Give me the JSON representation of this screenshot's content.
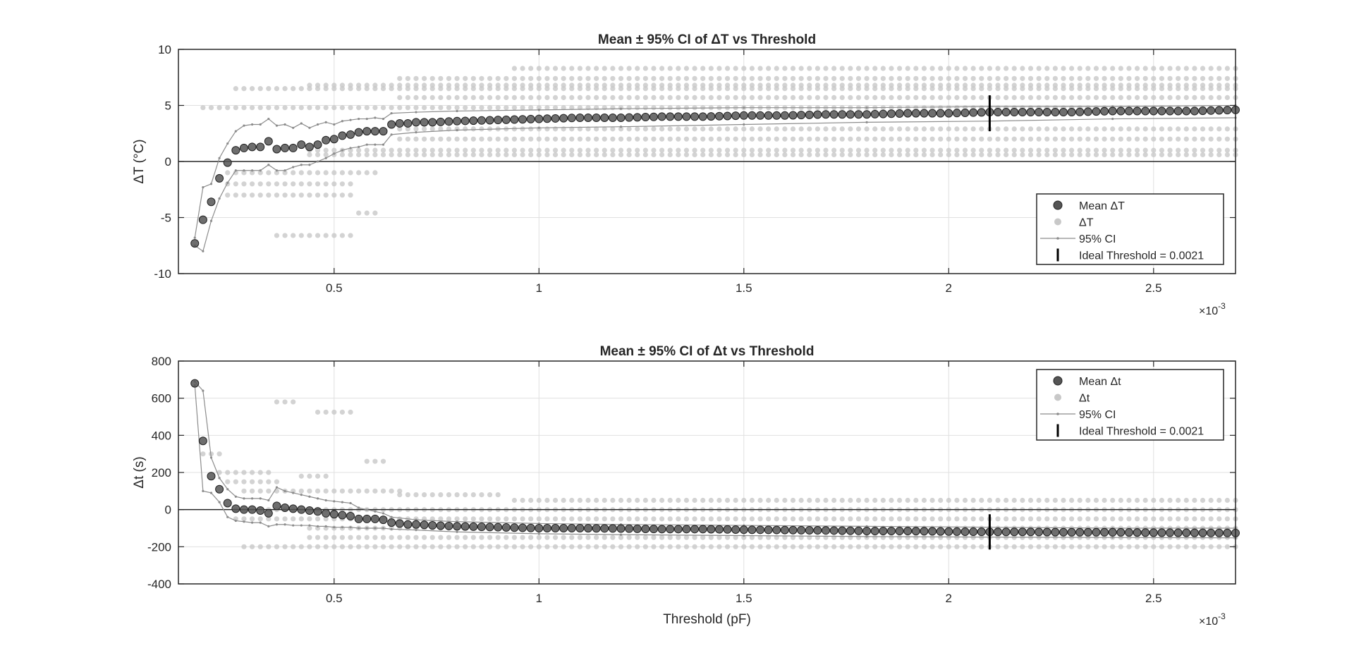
{
  "figure": {
    "background": "#ffffff",
    "colors": {
      "mean_fill": "#555555",
      "mean_edge": "#222222",
      "raw": "#c8c8c8",
      "ci": "#8c8c8c",
      "ideal": "#000000",
      "grid": "#e0e0e0",
      "axis": "#262626"
    }
  },
  "chart_data": [
    {
      "id": "top",
      "type": "scatter",
      "title": "Mean ± 95% CI of ΔT vs Threshold",
      "xlabel": "",
      "ylabel": "ΔT (°C)",
      "x_exponent_label": "×10",
      "x_exponent": "-3",
      "xlim": [
        0.00012,
        0.0027
      ],
      "ylim": [
        -10,
        10
      ],
      "xticks": [
        0.0005,
        0.001,
        0.0015,
        0.002,
        0.0025
      ],
      "xtick_labels": [
        "0.5",
        "1",
        "1.5",
        "2",
        "2.5"
      ],
      "yticks": [
        -10,
        -5,
        0,
        5,
        10
      ],
      "ytick_labels": [
        "-10",
        "-5",
        "0",
        "5",
        "10"
      ],
      "grid": true,
      "zero_line": true,
      "ideal_threshold": 0.0021,
      "ideal_bar_range": [
        2.7,
        5.9
      ],
      "mean_points": [
        [
          0.00016,
          -7.3
        ],
        [
          0.00018,
          -5.2
        ],
        [
          0.0002,
          -3.6
        ],
        [
          0.00022,
          -1.5
        ],
        [
          0.00024,
          -0.1
        ],
        [
          0.00026,
          1.0
        ],
        [
          0.00028,
          1.2
        ],
        [
          0.0003,
          1.3
        ],
        [
          0.00032,
          1.3
        ],
        [
          0.00034,
          1.8
        ],
        [
          0.00036,
          1.1
        ],
        [
          0.00038,
          1.2
        ],
        [
          0.0004,
          1.2
        ],
        [
          0.00042,
          1.5
        ],
        [
          0.00044,
          1.3
        ],
        [
          0.00046,
          1.5
        ],
        [
          0.00048,
          1.9
        ],
        [
          0.0005,
          2.0
        ],
        [
          0.00052,
          2.3
        ],
        [
          0.00054,
          2.4
        ],
        [
          0.00056,
          2.6
        ],
        [
          0.00058,
          2.7
        ],
        [
          0.0006,
          2.7
        ],
        [
          0.00062,
          2.7
        ],
        [
          0.00064,
          3.3
        ],
        [
          0.00066,
          3.4
        ],
        [
          0.00068,
          3.4
        ],
        [
          0.0007,
          3.5
        ],
        [
          0.00072,
          3.5
        ],
        [
          0.00074,
          3.5
        ],
        [
          0.0008,
          3.6
        ],
        [
          0.0009,
          3.7
        ],
        [
          0.001,
          3.8
        ],
        [
          0.0011,
          3.9
        ],
        [
          0.0012,
          3.9
        ],
        [
          0.0013,
          4.0
        ],
        [
          0.0014,
          4.0
        ],
        [
          0.0015,
          4.1
        ],
        [
          0.0016,
          4.1
        ],
        [
          0.0017,
          4.2
        ],
        [
          0.0018,
          4.2
        ],
        [
          0.0019,
          4.3
        ],
        [
          0.002,
          4.3
        ],
        [
          0.0021,
          4.4
        ],
        [
          0.0022,
          4.4
        ],
        [
          0.0023,
          4.4
        ],
        [
          0.0024,
          4.5
        ],
        [
          0.0025,
          4.5
        ],
        [
          0.0026,
          4.5
        ],
        [
          0.0027,
          4.6
        ]
      ],
      "ci_upper": [
        [
          0.00016,
          -6.8
        ],
        [
          0.00018,
          -2.3
        ],
        [
          0.0002,
          -2.0
        ],
        [
          0.00022,
          0.3
        ],
        [
          0.00024,
          1.6
        ],
        [
          0.00026,
          2.7
        ],
        [
          0.00028,
          3.2
        ],
        [
          0.0003,
          3.3
        ],
        [
          0.00032,
          3.3
        ],
        [
          0.00034,
          3.8
        ],
        [
          0.00036,
          3.2
        ],
        [
          0.00038,
          3.3
        ],
        [
          0.0004,
          3.0
        ],
        [
          0.00042,
          3.4
        ],
        [
          0.00044,
          3.0
        ],
        [
          0.00046,
          3.3
        ],
        [
          0.00048,
          3.5
        ],
        [
          0.0005,
          3.3
        ],
        [
          0.00052,
          3.6
        ],
        [
          0.00054,
          3.7
        ],
        [
          0.00056,
          3.8
        ],
        [
          0.00058,
          3.8
        ],
        [
          0.0006,
          3.9
        ],
        [
          0.00062,
          3.8
        ],
        [
          0.00064,
          4.3
        ],
        [
          0.0007,
          4.4
        ],
        [
          0.0008,
          4.5
        ],
        [
          0.001,
          4.6
        ],
        [
          0.0012,
          4.7
        ],
        [
          0.0015,
          4.8
        ],
        [
          0.0018,
          4.8
        ],
        [
          0.0021,
          4.9
        ],
        [
          0.0024,
          4.9
        ],
        [
          0.0027,
          5.0
        ]
      ],
      "ci_lower": [
        [
          0.00016,
          -7.5
        ],
        [
          0.00018,
          -8.0
        ],
        [
          0.0002,
          -5.3
        ],
        [
          0.00022,
          -3.3
        ],
        [
          0.00024,
          -1.9
        ],
        [
          0.00026,
          -0.8
        ],
        [
          0.00028,
          -0.8
        ],
        [
          0.0003,
          -0.8
        ],
        [
          0.00032,
          -0.8
        ],
        [
          0.00034,
          -0.3
        ],
        [
          0.00036,
          -0.8
        ],
        [
          0.00038,
          -0.8
        ],
        [
          0.0004,
          -0.5
        ],
        [
          0.00042,
          -0.3
        ],
        [
          0.00044,
          -0.3
        ],
        [
          0.00046,
          0.0
        ],
        [
          0.00048,
          0.3
        ],
        [
          0.0005,
          0.7
        ],
        [
          0.00052,
          1.0
        ],
        [
          0.00054,
          1.2
        ],
        [
          0.00056,
          1.3
        ],
        [
          0.00058,
          1.5
        ],
        [
          0.0006,
          1.5
        ],
        [
          0.00062,
          1.5
        ],
        [
          0.00064,
          2.4
        ],
        [
          0.0007,
          2.6
        ],
        [
          0.0008,
          2.8
        ],
        [
          0.001,
          3.0
        ],
        [
          0.0012,
          3.1
        ],
        [
          0.0015,
          3.3
        ],
        [
          0.0018,
          3.5
        ],
        [
          0.0021,
          3.6
        ],
        [
          0.0024,
          3.8
        ],
        [
          0.0027,
          3.9
        ]
      ],
      "raw_levels": [
        {
          "x_from": 0.00018,
          "x_to": 0.0027,
          "y": 4.8
        },
        {
          "x_from": 0.00026,
          "x_to": 0.0027,
          "y": 6.5
        },
        {
          "x_from": 0.00044,
          "x_to": 0.0027,
          "y": 6.8
        },
        {
          "x_from": 0.00066,
          "x_to": 0.0027,
          "y": 7.4
        },
        {
          "x_from": 0.00094,
          "x_to": 0.0027,
          "y": 8.3
        },
        {
          "x_from": 0.00066,
          "x_to": 0.0027,
          "y": 5.7
        },
        {
          "x_from": 0.00066,
          "x_to": 0.0027,
          "y": 2.9
        },
        {
          "x_from": 0.00066,
          "x_to": 0.0027,
          "y": 2.0
        },
        {
          "x_from": 0.00044,
          "x_to": 0.0027,
          "y": 1.0
        },
        {
          "x_from": 0.00044,
          "x_to": 0.0027,
          "y": 0.6
        },
        {
          "x_from": 0.00024,
          "x_to": 0.0006,
          "y": -1.0
        },
        {
          "x_from": 0.00024,
          "x_to": 0.00054,
          "y": -2.0
        },
        {
          "x_from": 0.00024,
          "x_to": 0.00054,
          "y": -3.0
        },
        {
          "x_from": 0.00036,
          "x_to": 0.00054,
          "y": -6.6
        },
        {
          "x_from": 0.00056,
          "x_to": 0.0006,
          "y": -4.6
        }
      ],
      "legend": {
        "position": "bottom-right",
        "entries": [
          "Mean ΔT",
          "ΔT",
          "95% CI",
          "Ideal Threshold = 0.0021"
        ]
      }
    },
    {
      "id": "bottom",
      "type": "scatter",
      "title": "Mean ± 95% CI of Δt vs Threshold",
      "xlabel": "Threshold (pF)",
      "ylabel": "Δt (s)",
      "x_exponent_label": "×10",
      "x_exponent": "-3",
      "xlim": [
        0.00012,
        0.0027
      ],
      "ylim": [
        -400,
        800
      ],
      "xticks": [
        0.0005,
        0.001,
        0.0015,
        0.002,
        0.0025
      ],
      "xtick_labels": [
        "0.5",
        "1",
        "1.5",
        "2",
        "2.5"
      ],
      "yticks": [
        -400,
        -200,
        0,
        200,
        400,
        600,
        800
      ],
      "ytick_labels": [
        "-400",
        "-200",
        "0",
        "200",
        "400",
        "600",
        "800"
      ],
      "grid": true,
      "zero_line": true,
      "ideal_threshold": 0.0021,
      "ideal_bar_range": [
        -215,
        -25
      ],
      "mean_points": [
        [
          0.00016,
          680
        ],
        [
          0.00018,
          370
        ],
        [
          0.0002,
          180
        ],
        [
          0.00022,
          110
        ],
        [
          0.00024,
          35
        ],
        [
          0.00026,
          5
        ],
        [
          0.00028,
          0
        ],
        [
          0.0003,
          0
        ],
        [
          0.00032,
          -5
        ],
        [
          0.00034,
          -20
        ],
        [
          0.00036,
          20
        ],
        [
          0.00038,
          10
        ],
        [
          0.0004,
          5
        ],
        [
          0.00042,
          0
        ],
        [
          0.00044,
          -5
        ],
        [
          0.00046,
          -10
        ],
        [
          0.00048,
          -20
        ],
        [
          0.0005,
          -25
        ],
        [
          0.00052,
          -30
        ],
        [
          0.00054,
          -35
        ],
        [
          0.00056,
          -50
        ],
        [
          0.00058,
          -50
        ],
        [
          0.0006,
          -50
        ],
        [
          0.00062,
          -55
        ],
        [
          0.00064,
          -70
        ],
        [
          0.00066,
          -75
        ],
        [
          0.00068,
          -80
        ],
        [
          0.0007,
          -80
        ],
        [
          0.00072,
          -82
        ],
        [
          0.00074,
          -85
        ],
        [
          0.0008,
          -90
        ],
        [
          0.0009,
          -95
        ],
        [
          0.001,
          -100
        ],
        [
          0.0011,
          -100
        ],
        [
          0.0012,
          -102
        ],
        [
          0.0013,
          -105
        ],
        [
          0.0014,
          -105
        ],
        [
          0.0015,
          -108
        ],
        [
          0.0016,
          -110
        ],
        [
          0.0017,
          -112
        ],
        [
          0.0018,
          -115
        ],
        [
          0.0019,
          -115
        ],
        [
          0.002,
          -118
        ],
        [
          0.0021,
          -120
        ],
        [
          0.0022,
          -120
        ],
        [
          0.0023,
          -122
        ],
        [
          0.0024,
          -122
        ],
        [
          0.0025,
          -124
        ],
        [
          0.0026,
          -125
        ],
        [
          0.0027,
          -126
        ]
      ],
      "ci_upper": [
        [
          0.00016,
          690
        ],
        [
          0.00018,
          640
        ],
        [
          0.0002,
          280
        ],
        [
          0.00022,
          170
        ],
        [
          0.00024,
          110
        ],
        [
          0.00026,
          70
        ],
        [
          0.00028,
          60
        ],
        [
          0.0003,
          60
        ],
        [
          0.00032,
          60
        ],
        [
          0.00034,
          50
        ],
        [
          0.00036,
          120
        ],
        [
          0.00038,
          100
        ],
        [
          0.0004,
          90
        ],
        [
          0.00042,
          80
        ],
        [
          0.00044,
          70
        ],
        [
          0.00046,
          60
        ],
        [
          0.00048,
          50
        ],
        [
          0.0005,
          45
        ],
        [
          0.00052,
          40
        ],
        [
          0.00054,
          35
        ],
        [
          0.00056,
          10
        ],
        [
          0.00058,
          0
        ],
        [
          0.0006,
          -10
        ],
        [
          0.00062,
          -20
        ],
        [
          0.00064,
          -40
        ],
        [
          0.0007,
          -55
        ],
        [
          0.0008,
          -65
        ],
        [
          0.001,
          -75
        ],
        [
          0.0012,
          -80
        ],
        [
          0.0015,
          -85
        ],
        [
          0.0018,
          -90
        ],
        [
          0.0021,
          -95
        ],
        [
          0.0024,
          -100
        ],
        [
          0.0027,
          -100
        ]
      ],
      "ci_lower": [
        [
          0.00016,
          670
        ],
        [
          0.00018,
          100
        ],
        [
          0.0002,
          90
        ],
        [
          0.00022,
          40
        ],
        [
          0.00024,
          -40
        ],
        [
          0.00026,
          -60
        ],
        [
          0.00028,
          -65
        ],
        [
          0.0003,
          -70
        ],
        [
          0.00032,
          -70
        ],
        [
          0.00034,
          -90
        ],
        [
          0.00036,
          -80
        ],
        [
          0.00038,
          -80
        ],
        [
          0.0004,
          -85
        ],
        [
          0.00042,
          -85
        ],
        [
          0.00044,
          -85
        ],
        [
          0.00046,
          -90
        ],
        [
          0.00048,
          -90
        ],
        [
          0.0005,
          -95
        ],
        [
          0.00052,
          -95
        ],
        [
          0.00054,
          -95
        ],
        [
          0.00056,
          -100
        ],
        [
          0.00058,
          -100
        ],
        [
          0.0006,
          -100
        ],
        [
          0.00062,
          -100
        ],
        [
          0.00064,
          -105
        ],
        [
          0.0007,
          -110
        ],
        [
          0.0008,
          -120
        ],
        [
          0.001,
          -130
        ],
        [
          0.0012,
          -135
        ],
        [
          0.0015,
          -140
        ],
        [
          0.0018,
          -145
        ],
        [
          0.0021,
          -148
        ],
        [
          0.0024,
          -150
        ],
        [
          0.0027,
          -152
        ]
      ],
      "raw_levels": [
        {
          "x_from": 0.00018,
          "x_to": 0.00022,
          "y": 300
        },
        {
          "x_from": 0.00022,
          "x_to": 0.00034,
          "y": 200
        },
        {
          "x_from": 0.00024,
          "x_to": 0.00036,
          "y": 150
        },
        {
          "x_from": 0.00036,
          "x_to": 0.0004,
          "y": 580
        },
        {
          "x_from": 0.00046,
          "x_to": 0.00054,
          "y": 525
        },
        {
          "x_from": 0.00058,
          "x_to": 0.00062,
          "y": 260
        },
        {
          "x_from": 0.00042,
          "x_to": 0.00048,
          "y": 180
        },
        {
          "x_from": 0.00028,
          "x_to": 0.00066,
          "y": 100
        },
        {
          "x_from": 0.00066,
          "x_to": 0.0009,
          "y": 80
        },
        {
          "x_from": 0.00094,
          "x_to": 0.0027,
          "y": 50
        },
        {
          "x_from": 0.00026,
          "x_to": 0.0027,
          "y": 0
        },
        {
          "x_from": 0.00026,
          "x_to": 0.0027,
          "y": -50
        },
        {
          "x_from": 0.00044,
          "x_to": 0.0027,
          "y": -100
        },
        {
          "x_from": 0.00044,
          "x_to": 0.0027,
          "y": -150
        },
        {
          "x_from": 0.00028,
          "x_to": 0.0027,
          "y": -200
        }
      ],
      "legend": {
        "position": "top-right",
        "entries": [
          "Mean Δt",
          "Δt",
          "95% CI",
          "Ideal Threshold = 0.0021"
        ]
      }
    }
  ]
}
